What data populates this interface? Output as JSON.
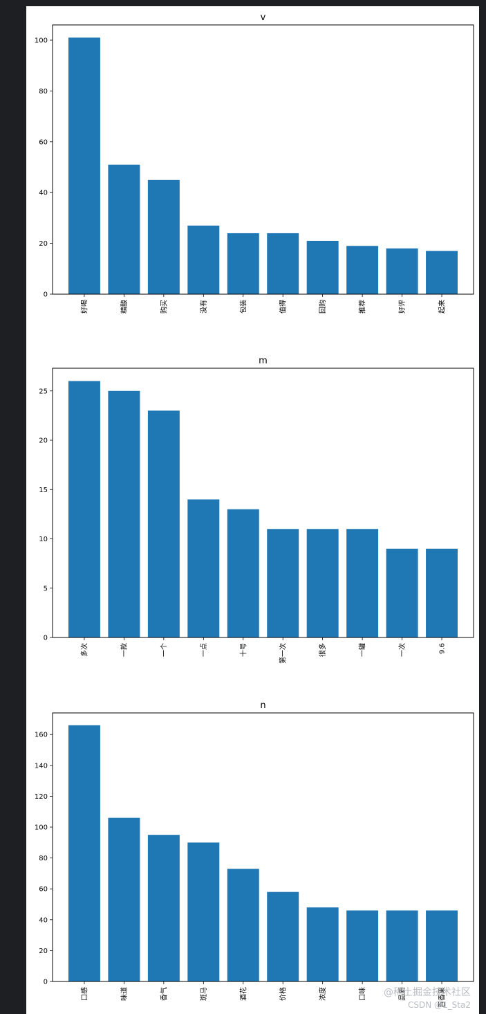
{
  "chart_data": [
    {
      "type": "bar",
      "title": "v",
      "categories": [
        "好喝",
        "精酿",
        "购买",
        "没有",
        "包装",
        "值得",
        "回购",
        "推荐",
        "好评",
        "起来"
      ],
      "values": [
        101,
        51,
        45,
        27,
        24,
        24,
        21,
        19,
        18,
        17
      ],
      "yticks": [
        0,
        20,
        40,
        60,
        80,
        100
      ],
      "ylim": [
        0,
        106
      ],
      "grid": false,
      "color": "#1f77b4"
    },
    {
      "type": "bar",
      "title": "m",
      "categories": [
        "多次",
        "一款",
        "一个",
        "一点",
        "十号",
        "第一次",
        "很多",
        "一罐",
        "一次",
        "9.6"
      ],
      "values": [
        26,
        25,
        23,
        14,
        13,
        11,
        11,
        11,
        9,
        9
      ],
      "yticks": [
        0,
        5,
        10,
        15,
        20,
        25
      ],
      "ylim": [
        0,
        27.3
      ],
      "grid": false,
      "color": "#1f77b4"
    },
    {
      "type": "bar",
      "title": "n",
      "categories": [
        "口感",
        "味道",
        "香气",
        "斑马",
        "酒花",
        "价格",
        "浓度",
        "口味",
        "品质",
        "百香果"
      ],
      "values": [
        166,
        106,
        95,
        90,
        73,
        58,
        48,
        46,
        46,
        46
      ],
      "yticks": [
        0,
        20,
        40,
        60,
        80,
        100,
        120,
        140,
        160
      ],
      "ylim": [
        0,
        174
      ],
      "grid": false,
      "color": "#1f77b4"
    }
  ],
  "watermark": {
    "line1": "@稀土掘金技术社区",
    "line2": "CSDN @1_Sta2"
  }
}
